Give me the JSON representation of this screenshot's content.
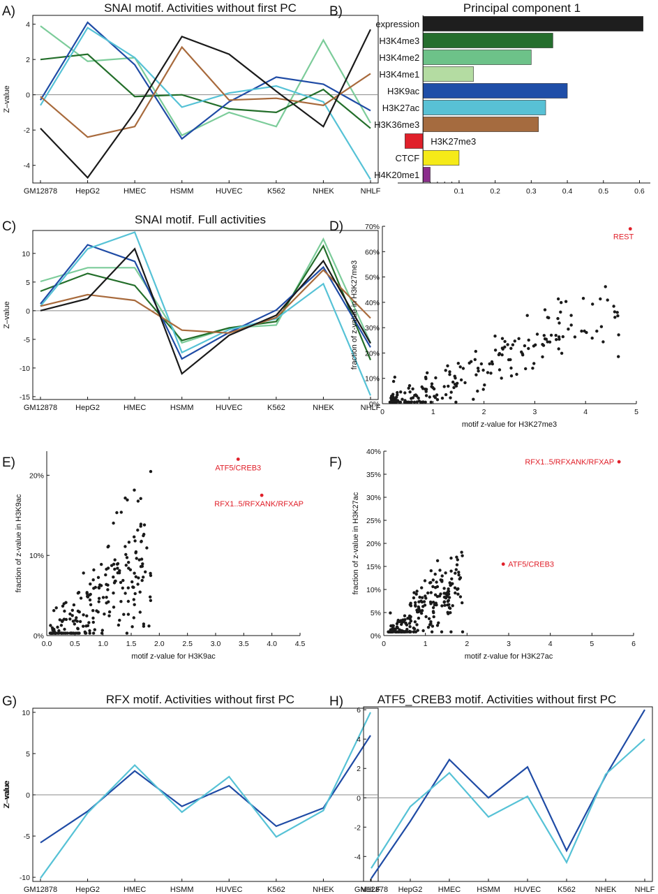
{
  "chart_data": [
    {
      "panel": "A)",
      "type": "line",
      "title": "SNAI motif. Activities without first PC",
      "ylabel": "Z–value",
      "categories": [
        "GM12878",
        "HepG2",
        "HMEC",
        "HSMM",
        "HUVEC",
        "K562",
        "NHEK",
        "NHLF"
      ],
      "ylim": [
        -5,
        4.5
      ],
      "yticks": [
        -4,
        -2,
        0,
        2,
        4
      ],
      "series": [
        {
          "color": "#7ccc9a",
          "values": [
            3.9,
            1.9,
            2.1,
            -2.3,
            -1.0,
            -1.8,
            3.1,
            -1.6
          ]
        },
        {
          "color": "#236e2a",
          "values": [
            2.0,
            2.3,
            -0.1,
            0.0,
            -0.8,
            -1.0,
            0.3,
            -1.9
          ]
        },
        {
          "color": "#1f4ba5",
          "values": [
            -0.3,
            4.1,
            1.7,
            -2.5,
            -0.4,
            1.0,
            0.6,
            -0.9
          ]
        },
        {
          "color": "#56c2d6",
          "values": [
            -0.6,
            3.8,
            2.1,
            -0.7,
            0.1,
            0.5,
            -0.4,
            -4.8
          ]
        },
        {
          "color": "#a86a3c",
          "values": [
            -0.1,
            -2.4,
            -1.8,
            2.7,
            -0.3,
            -0.2,
            -0.6,
            1.2
          ]
        },
        {
          "color": "#1a1a1a",
          "values": [
            -1.9,
            -4.7,
            -1.0,
            3.3,
            2.3,
            0.2,
            -1.8,
            3.7
          ]
        }
      ]
    },
    {
      "panel": "B)",
      "type": "bar",
      "title": "Principal component 1",
      "orientation": "horizontal",
      "categories": [
        "expression",
        "H3K4me3",
        "H3K4me2",
        "H3K4me1",
        "H3K9ac",
        "H3K27ac",
        "H3K36me3",
        "H3K27me3",
        "CTCF",
        "H4K20me1"
      ],
      "values": [
        0.61,
        0.36,
        0.3,
        0.14,
        0.4,
        0.34,
        0.32,
        -0.05,
        0.1,
        0.02
      ],
      "colors": [
        "#1e1e1e",
        "#256e2d",
        "#6dc289",
        "#b4dca2",
        "#1f4ea8",
        "#58c1d5",
        "#a56b3f",
        "#e0202a",
        "#f5ea18",
        "#8b2d8c"
      ],
      "xlim": [
        -0.07,
        0.63
      ],
      "xticks": [
        0.1,
        0.2,
        0.3,
        0.4,
        0.5,
        0.6
      ]
    },
    {
      "panel": "C)",
      "type": "line",
      "title": "SNAI motif. Full activities",
      "ylabel": "Z–value",
      "categories": [
        "GM12878",
        "HepG2",
        "HMEC",
        "HSMM",
        "HUVEC",
        "K562",
        "NHEK",
        "NHLF"
      ],
      "ylim": [
        -15.5,
        14
      ],
      "yticks": [
        -15,
        -10,
        -5,
        0,
        5,
        10
      ],
      "series": [
        {
          "color": "#7ccc9a",
          "values": [
            5.1,
            7.5,
            7.5,
            -5.6,
            -3.0,
            -2.5,
            12.5,
            -5.6
          ]
        },
        {
          "color": "#236e2a",
          "values": [
            3.4,
            6.5,
            4.4,
            -5.2,
            -3.0,
            -1.9,
            11.3,
            -8.6
          ]
        },
        {
          "color": "#1f4ba5",
          "values": [
            1.2,
            11.5,
            8.6,
            -8.4,
            -3.8,
            0.1,
            7.6,
            -6.4
          ]
        },
        {
          "color": "#56c2d6",
          "values": [
            0.8,
            10.8,
            13.7,
            -7.3,
            -3.3,
            -1.4,
            4.7,
            -14.8
          ]
        },
        {
          "color": "#a86a3c",
          "values": [
            0.8,
            2.8,
            1.8,
            -3.4,
            -3.9,
            -1.2,
            7.1,
            -1.3
          ]
        },
        {
          "color": "#1a1a1a",
          "values": [
            0.0,
            2.1,
            10.8,
            -11.0,
            -4.3,
            -0.8,
            8.7,
            -5.7
          ]
        }
      ]
    },
    {
      "panel": "D)",
      "type": "scatter",
      "xlabel": "motif z-value for H3K27me3",
      "ylabel": "fraction of z-value in H3K27me3",
      "xlim": [
        0,
        5
      ],
      "ylim": [
        0,
        70
      ],
      "xticks": [
        0,
        1,
        2,
        3,
        4,
        5
      ],
      "yticks": [
        0,
        10,
        20,
        30,
        40,
        50,
        60,
        70
      ],
      "ytick_suffix": "%",
      "highlight": [
        {
          "label": "REST",
          "x": 4.88,
          "y": 69
        }
      ]
    },
    {
      "panel": "E)",
      "type": "scatter",
      "xlabel": "motif z-value for H3K9ac",
      "ylabel": "fraction of z-value in H3K9ac",
      "xlim": [
        0,
        4.5
      ],
      "ylim": [
        0,
        23
      ],
      "xticks": [
        0.0,
        0.5,
        1.0,
        1.5,
        2.0,
        2.5,
        3.0,
        3.5,
        4.0,
        4.5
      ],
      "yticks": [
        0,
        10,
        20
      ],
      "ytick_suffix": "%",
      "highlight": [
        {
          "label": "ATF5/CREB3",
          "x": 3.4,
          "y": 22
        },
        {
          "label": "RFX1..5/RFXANK/RFXAP",
          "x": 3.82,
          "y": 17.5
        }
      ]
    },
    {
      "panel": "F)",
      "type": "scatter",
      "xlabel": "motif z-value for H3K27ac",
      "ylabel": "fraction of z-value in H3K27ac",
      "xlim": [
        0,
        6
      ],
      "ylim": [
        0,
        40
      ],
      "xticks": [
        0,
        1,
        2,
        3,
        4,
        5,
        6
      ],
      "yticks": [
        0,
        5,
        10,
        15,
        20,
        25,
        30,
        35,
        40
      ],
      "ytick_suffix": "%",
      "highlight": [
        {
          "label": "RFX1..5/RFXANK/RFXAP",
          "x": 5.65,
          "y": 37.7
        },
        {
          "label": "ATF5/CREB3",
          "x": 2.87,
          "y": 15.5
        }
      ]
    },
    {
      "panel": "G)",
      "type": "line",
      "title": "RFX motif. Activities without first PC",
      "ylabel": "Z–value",
      "categories": [
        "GM12878",
        "HepG2",
        "HMEC",
        "HSMM",
        "HUVEC",
        "K562",
        "NHEK",
        "NHLF"
      ],
      "ylim": [
        -10.5,
        10.5
      ],
      "yticks": [
        -10,
        -5,
        0,
        5,
        10
      ],
      "series": [
        {
          "color": "#1f4ba5",
          "values": [
            -5.8,
            -2.0,
            2.9,
            -1.4,
            1.1,
            -3.8,
            -1.6,
            7.2
          ]
        },
        {
          "color": "#56c2d6",
          "values": [
            -10.1,
            -2.2,
            3.6,
            -2.1,
            2.2,
            -5.1,
            -1.9,
            10.0
          ]
        }
      ]
    },
    {
      "panel": "H)",
      "type": "line",
      "title": "ATF5_CREB3 motif. Activities without first PC",
      "ylabel": "Z–value",
      "categories": [
        "GM12878",
        "HepG2",
        "HMEC",
        "HSMM",
        "HUVEC",
        "K562",
        "NHEK",
        "NHLF"
      ],
      "ylim": [
        -5.7,
        6.2
      ],
      "yticks": [
        -4,
        -2,
        0,
        2,
        4,
        6
      ],
      "series": [
        {
          "color": "#1f4ba5",
          "values": [
            -5.5,
            -1.6,
            2.6,
            0.0,
            2.1,
            -3.6,
            1.5,
            6.0
          ]
        },
        {
          "color": "#56c2d6",
          "values": [
            -4.8,
            -0.6,
            1.7,
            -1.3,
            0.1,
            -4.4,
            1.6,
            4.0
          ]
        }
      ]
    }
  ]
}
